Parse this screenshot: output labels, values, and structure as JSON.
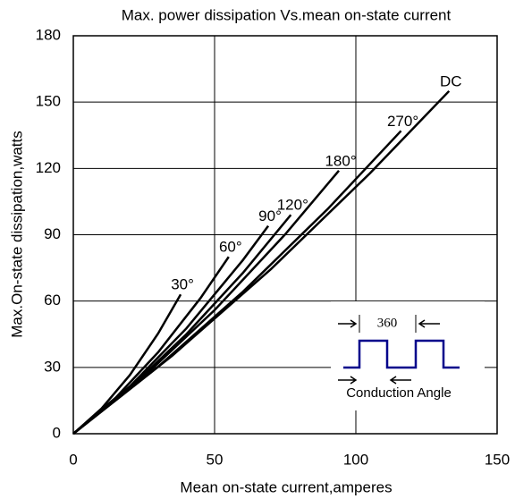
{
  "chart_data": {
    "type": "line",
    "title": "Max. power dissipation Vs.mean on-state current",
    "x_label": "Mean on-state current,amperes",
    "y_label": "Max.On-state dissipation,watts",
    "xlim": [
      0,
      150
    ],
    "ylim": [
      0,
      180
    ],
    "xticks": [
      0,
      50,
      100,
      150
    ],
    "yticks": [
      0,
      30,
      60,
      90,
      120,
      150,
      180
    ],
    "grid": true,
    "series": [
      {
        "name": "30°",
        "color": "#000000",
        "x": [
          0,
          10,
          20,
          30,
          38
        ],
        "values": [
          0,
          11.4,
          26.5,
          45.3,
          63
        ]
      },
      {
        "name": "60°",
        "color": "#000000",
        "x": [
          0,
          15,
          30,
          45,
          55
        ],
        "values": [
          0,
          16.3,
          36.8,
          61.3,
          80
        ]
      },
      {
        "name": "90°",
        "color": "#000000",
        "x": [
          0,
          20,
          40,
          60,
          69
        ],
        "values": [
          0,
          21.4,
          47.6,
          78.5,
          94
        ]
      },
      {
        "name": "120°",
        "color": "#000000",
        "x": [
          0,
          20,
          40,
          60,
          77
        ],
        "values": [
          0,
          20.7,
          45,
          72.7,
          99
        ]
      },
      {
        "name": "180°",
        "color": "#000000",
        "x": [
          0,
          25,
          50,
          75,
          94
        ],
        "values": [
          0,
          25.9,
          55.9,
          90.2,
          119
        ]
      },
      {
        "name": "270°",
        "color": "#000000",
        "x": [
          0,
          30,
          60,
          90,
          116
        ],
        "values": [
          0,
          30.3,
          64.2,
          101.6,
          137
        ]
      },
      {
        "name": "DC",
        "color": "#000000",
        "x": [
          0,
          35,
          70,
          105,
          133
        ],
        "values": [
          0,
          35.3,
          74.5,
          117.8,
          155
        ]
      }
    ],
    "annotations": [
      "360",
      "Conduction Angle"
    ]
  }
}
